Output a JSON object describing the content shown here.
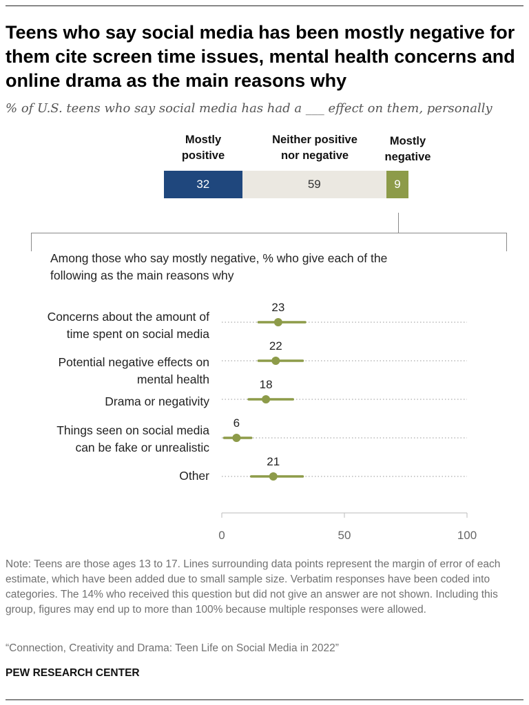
{
  "title": "Teens who say social media has been mostly negative for them cite screen time issues, mental health concerns and online drama as the main reasons why",
  "subtitle": "% of U.S. teens who say social media has had a ___ effect on them, personally",
  "colors": {
    "positive": "#1f477d",
    "neither": "#ebe8e1",
    "negative": "#8d9b49",
    "dot": "#8d9b49",
    "grid": "#aaaaaa"
  },
  "chart_data": [
    {
      "type": "bar",
      "orientation": "horizontal-stacked",
      "categories": [
        "Mostly\npositive",
        "Neither positive\nnor negative",
        "Mostly\nnegative"
      ],
      "values": [
        32,
        59,
        9
      ]
    },
    {
      "type": "scatter",
      "style": "dot-with-error-bars",
      "title": "Among those who say mostly negative, % who give each of the\nfollowing as the main reasons why",
      "categories": [
        "Concerns about the amount of\ntime spent on social media",
        "Potential negative effects on\nmental health",
        "Drama or negativity",
        "Things seen on social media\ncan be fake or unrealistic",
        "Other"
      ],
      "values": [
        23,
        22,
        18,
        6,
        21
      ],
      "error_ranges": [
        [
          15,
          34
        ],
        [
          15,
          33
        ],
        [
          11,
          29
        ],
        [
          1,
          12
        ],
        [
          12,
          33
        ]
      ],
      "xlim": [
        0,
        100
      ],
      "xticks": [
        0,
        50,
        100
      ],
      "grid": true
    }
  ],
  "note": "Note: Teens are those ages 13 to 17. Lines surrounding data points represent the margin of error of each estimate, which have been added due to small sample size. Verbatim responses have been coded into categories. The 14% who received this question but did not give an answer are not shown. Including this group, figures may end up to more than 100% because multiple responses were allowed.",
  "source": "“Connection, Creativity and Drama: Teen Life on Social Media in 2022”",
  "brand": "PEW RESEARCH CENTER"
}
